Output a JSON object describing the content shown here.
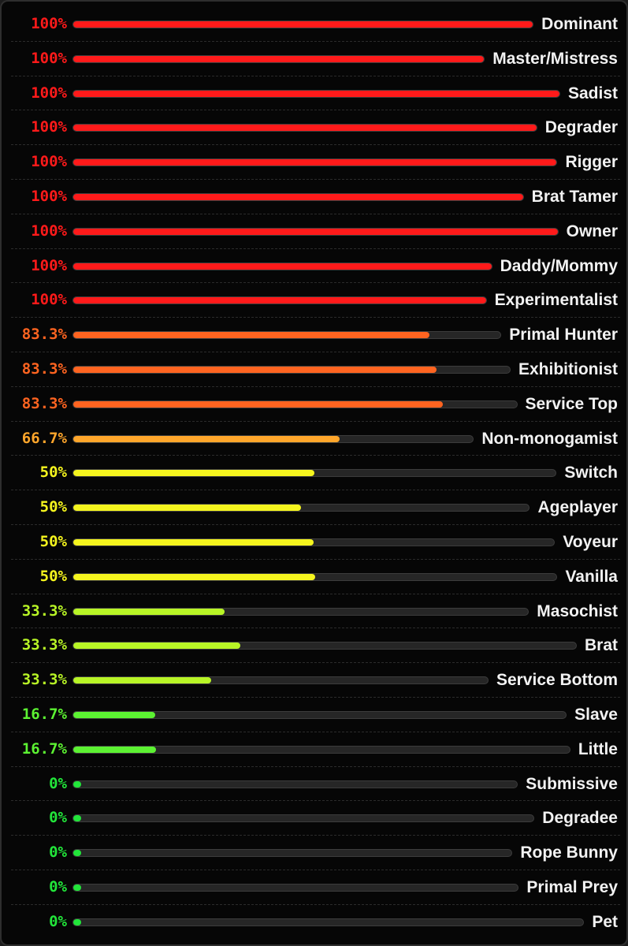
{
  "chart_data": {
    "type": "bar",
    "orientation": "horizontal",
    "xlim": [
      0,
      100
    ],
    "grid": false,
    "categories": [
      "Dominant",
      "Master/Mistress",
      "Sadist",
      "Degrader",
      "Rigger",
      "Brat Tamer",
      "Owner",
      "Daddy/Mommy",
      "Experimentalist",
      "Primal Hunter",
      "Exhibitionist",
      "Service Top",
      "Non-monogamist",
      "Switch",
      "Ageplayer",
      "Voyeur",
      "Vanilla",
      "Masochist",
      "Brat",
      "Service Bottom",
      "Slave",
      "Little",
      "Submissive",
      "Degradee",
      "Rope Bunny",
      "Primal Prey",
      "Pet"
    ],
    "values": [
      100,
      100,
      100,
      100,
      100,
      100,
      100,
      100,
      100,
      83.3,
      83.3,
      83.3,
      66.7,
      50,
      50,
      50,
      50,
      33.3,
      33.3,
      33.3,
      16.7,
      16.7,
      0,
      0,
      0,
      0,
      0
    ],
    "value_labels": [
      "100%",
      "100%",
      "100%",
      "100%",
      "100%",
      "100%",
      "100%",
      "100%",
      "100%",
      "83.3%",
      "83.3%",
      "83.3%",
      "66.7%",
      "50%",
      "50%",
      "50%",
      "50%",
      "33.3%",
      "33.3%",
      "33.3%",
      "16.7%",
      "16.7%",
      "0%",
      "0%",
      "0%",
      "0%",
      "0%"
    ],
    "colors": {
      "100": "#ff1a1a",
      "83.3": "#ff6420",
      "66.7": "#ffa62b",
      "50": "#f5f51e",
      "33.3": "#b8f526",
      "16.7": "#5cf232",
      "0": "#22e63a"
    }
  }
}
